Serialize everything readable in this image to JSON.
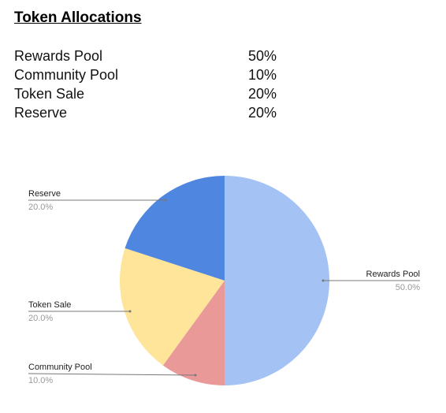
{
  "title": "Token Allocations",
  "table": {
    "rows": [
      [
        "Rewards Pool",
        "50%"
      ],
      [
        "Community Pool",
        "10%"
      ],
      [
        "Token Sale",
        "20%"
      ],
      [
        "Reserve",
        "20%"
      ]
    ]
  },
  "chart_data": {
    "type": "pie",
    "categories": [
      "Rewards Pool",
      "Community Pool",
      "Token Sale",
      "Reserve"
    ],
    "values": [
      50,
      10,
      20,
      20
    ],
    "value_labels": [
      "50.0%",
      "10.0%",
      "20.0%",
      "20.0%"
    ],
    "colors": [
      "#a4c2f4",
      "#ea9999",
      "#ffe599",
      "#4f86e0"
    ]
  }
}
